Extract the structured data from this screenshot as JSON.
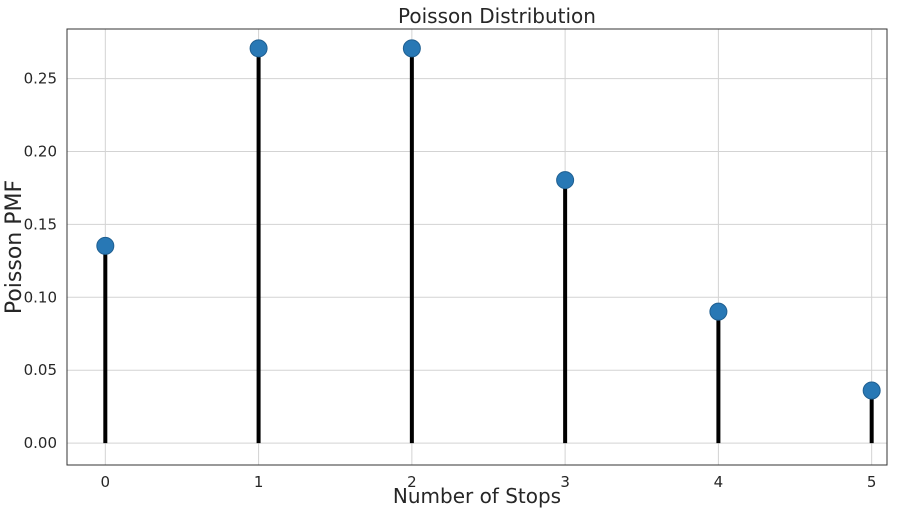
{
  "chart_data": {
    "type": "stem",
    "title": "Poisson Distribution",
    "xlabel": "Number of Stops",
    "ylabel": "Poisson PMF",
    "x": [
      0,
      1,
      2,
      3,
      4,
      5
    ],
    "y": [
      0.1353,
      0.2707,
      0.2707,
      0.1804,
      0.0902,
      0.0361
    ],
    "xlim": [
      -0.25,
      5.1
    ],
    "ylim": [
      -0.015,
      0.284
    ],
    "xticks": [
      0,
      1,
      2,
      3,
      4,
      5
    ],
    "yticks": [
      0.0,
      0.05,
      0.1,
      0.15,
      0.2,
      0.25
    ],
    "ytick_labels": [
      "0.00",
      "0.05",
      "0.10",
      "0.15",
      "0.20",
      "0.25"
    ],
    "xtick_labels": [
      "0",
      "1",
      "2",
      "3",
      "4",
      "5"
    ],
    "grid": true,
    "colors": {
      "marker": "#2878b5",
      "marker_edge": "#1f5f91",
      "stem": "#000000",
      "grid": "#d3d3d3",
      "frame": "#333333"
    }
  }
}
